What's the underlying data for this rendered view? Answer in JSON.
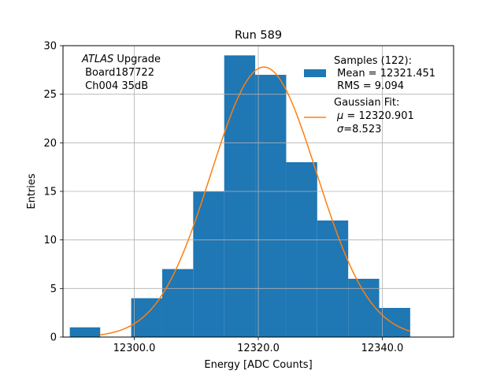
{
  "chart_data": {
    "type": "bar",
    "title": "Run 589",
    "xlabel": "Energy [ADC Counts]",
    "ylabel": "Entries",
    "xlim": [
      12288.5,
      12351.5
    ],
    "ylim": [
      0,
      30
    ],
    "xticks": [
      "12300.0",
      "12320.0",
      "12340.0"
    ],
    "xtick_values": [
      12300,
      12320,
      12340
    ],
    "yticks": [
      "0",
      "5",
      "10",
      "15",
      "20",
      "25",
      "30"
    ],
    "ytick_values": [
      0,
      5,
      10,
      15,
      20,
      25,
      30
    ],
    "grid": true,
    "bins": [
      {
        "x0": 12289.6,
        "x1": 12294.5,
        "count": 1
      },
      {
        "x0": 12299.5,
        "x1": 12304.5,
        "count": 4
      },
      {
        "x0": 12304.5,
        "x1": 12309.5,
        "count": 7
      },
      {
        "x0": 12309.5,
        "x1": 12314.5,
        "count": 15
      },
      {
        "x0": 12314.5,
        "x1": 12319.5,
        "count": 29
      },
      {
        "x0": 12319.5,
        "x1": 12324.5,
        "count": 27
      },
      {
        "x0": 12324.5,
        "x1": 12329.5,
        "count": 18
      },
      {
        "x0": 12329.5,
        "x1": 12334.5,
        "count": 12
      },
      {
        "x0": 12334.5,
        "x1": 12339.5,
        "count": 6
      },
      {
        "x0": 12339.5,
        "x1": 12344.5,
        "count": 3
      }
    ],
    "fit": {
      "type": "gaussian",
      "mu": 12320.901,
      "sigma": 8.523,
      "peak": 27.8,
      "x_range": [
        12294.5,
        12344.5
      ]
    },
    "colors": {
      "bars": "#1f77b4",
      "fit": "#ff7f0e"
    },
    "annotation": {
      "atlas": "ATLAS",
      "upgrade": " Upgrade",
      "board": " Board187722",
      "channel": " Ch004 35dB"
    },
    "legend": {
      "placement": "upper-right",
      "samples_title": "Samples (122):",
      "samples_mean": " Mean = 12321.451",
      "samples_rms": " RMS = 9.094",
      "fit_title": "Gaussian Fit:",
      "fit_mu_symbol": "μ",
      "fit_mu_value": " = 12320.901",
      "fit_sigma_symbol": "σ",
      "fit_sigma_value": "=8.523"
    }
  }
}
